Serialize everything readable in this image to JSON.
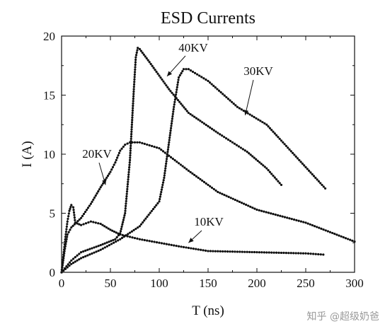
{
  "chart_data": {
    "type": "scatter",
    "title": "ESD Currents",
    "xlabel": "T (ns)",
    "ylabel": "I (A)",
    "xlim": [
      0,
      300
    ],
    "ylim": [
      0,
      20
    ],
    "xticks": [
      "0",
      "50",
      "100",
      "150",
      "200",
      "250",
      "300"
    ],
    "yticks": [
      "0",
      "5",
      "10",
      "15",
      "20"
    ],
    "grid": false,
    "series": [
      {
        "name": "10KV",
        "x": [
          0,
          2,
          4,
          6,
          8,
          10,
          12,
          14,
          20,
          30,
          40,
          50,
          60,
          70,
          80,
          100,
          120,
          150,
          200,
          250,
          268
        ],
        "y": [
          0,
          1.5,
          3.0,
          4.3,
          5.2,
          5.7,
          5.5,
          4.2,
          4.0,
          4.3,
          4.1,
          3.6,
          3.2,
          3.0,
          2.8,
          2.5,
          2.2,
          1.8,
          1.7,
          1.6,
          1.5
        ]
      },
      {
        "name": "20KV",
        "x": [
          0,
          3,
          6,
          10,
          15,
          20,
          30,
          40,
          50,
          55,
          60,
          65,
          70,
          80,
          100,
          130,
          160,
          200,
          250,
          300
        ],
        "y": [
          0,
          1.8,
          3.2,
          3.8,
          4.2,
          4.6,
          5.8,
          7.2,
          8.5,
          9.3,
          10.3,
          10.8,
          11.0,
          11.0,
          10.5,
          8.6,
          6.8,
          5.3,
          4.2,
          2.6
        ]
      },
      {
        "name": "30KV",
        "x": [
          0,
          10,
          20,
          40,
          60,
          80,
          100,
          105,
          110,
          115,
          120,
          125,
          130,
          150,
          180,
          210,
          240,
          270
        ],
        "y": [
          0,
          0.7,
          1.2,
          1.9,
          2.8,
          3.9,
          6.0,
          8.0,
          11.0,
          14.0,
          16.5,
          17.2,
          17.2,
          16.2,
          14.0,
          12.5,
          9.8,
          7.1
        ]
      },
      {
        "name": "40KV",
        "x": [
          0,
          10,
          20,
          40,
          55,
          60,
          65,
          70,
          72,
          74,
          76,
          78,
          80,
          90,
          110,
          130,
          160,
          190,
          210,
          225
        ],
        "y": [
          0,
          1.0,
          1.7,
          2.3,
          2.8,
          3.3,
          5.0,
          9.5,
          12.5,
          15.5,
          18.2,
          19.0,
          18.9,
          17.8,
          15.5,
          13.5,
          11.8,
          10.2,
          8.8,
          7.4
        ]
      }
    ],
    "annotations": [
      {
        "text": "40KV",
        "target_x": 108,
        "target_y": 16.6
      },
      {
        "text": "30KV",
        "target_x": 188,
        "target_y": 13.3
      },
      {
        "text": "20KV",
        "target_x": 45,
        "target_y": 7.4
      },
      {
        "text": "10KV",
        "target_x": 130,
        "target_y": 2.5
      }
    ]
  },
  "watermark": "知乎 @超级奶爸"
}
